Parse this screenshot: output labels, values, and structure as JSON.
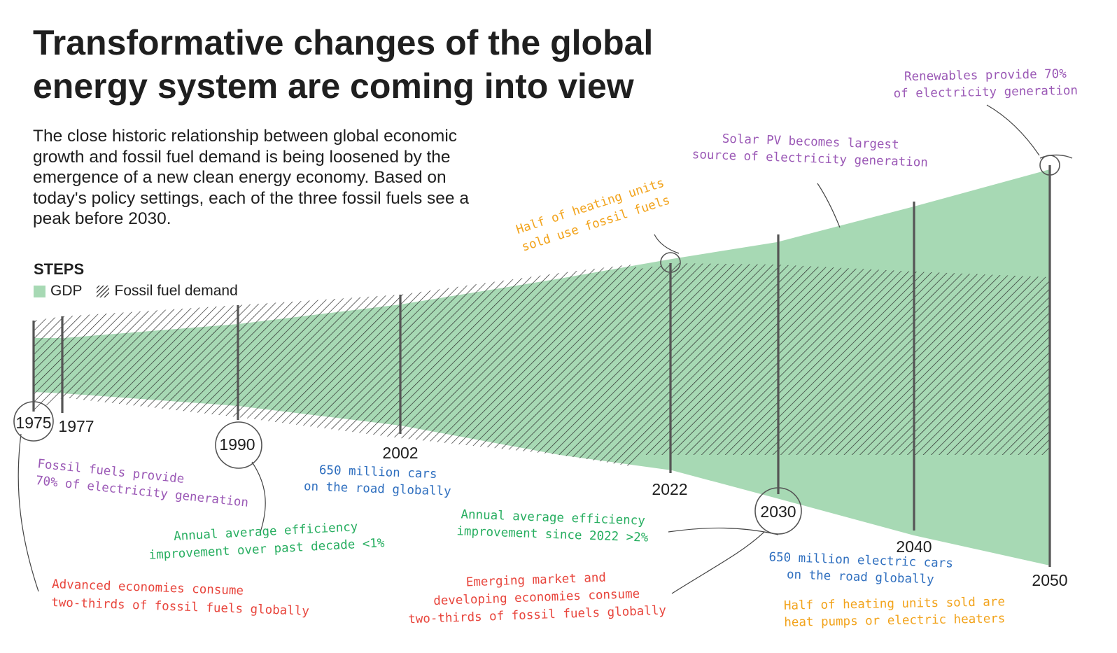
{
  "title": "Transformative changes of the global energy system are coming into view",
  "subtitle": "The close historic relationship between global economic growth and fossil fuel demand is being loosened by the emergence of a new clean energy economy. Based on today's policy settings, each of the three fossil fuels see a peak before 2030.",
  "legend": {
    "title": "STEPS",
    "gdp_label": "GDP",
    "fossil_label": "Fossil fuel demand"
  },
  "colors": {
    "gdp": "#a7d9b4",
    "hatch": "#2b2b2b",
    "purple": "#9b59b6",
    "green": "#27ae60",
    "blue": "#2f6fbf",
    "red": "#e8453c",
    "orange": "#f2a31b"
  },
  "chart_data": {
    "type": "area",
    "title": "Transformative changes of the global energy system are coming into view",
    "scenario": "STEPS",
    "milestone_years": [
      "1975",
      "1977",
      "1990",
      "2002",
      "2022",
      "2030",
      "2040",
      "2050"
    ],
    "series": [
      {
        "name": "GDP",
        "style": "solid green band"
      },
      {
        "name": "Fossil fuel demand",
        "style": "hatched band"
      }
    ],
    "annotations": [
      {
        "id": "fossil_70",
        "year": "1975",
        "color": "purple",
        "lines": [
          "Fossil fuels provide",
          "70% of electricity generation"
        ]
      },
      {
        "id": "advanced_economies",
        "year": "1975",
        "color": "red",
        "lines": [
          "Advanced economies consume",
          "two-thirds of fossil fuels globally"
        ]
      },
      {
        "id": "efficiency_past",
        "year": "1990",
        "color": "green",
        "lines": [
          "Annual average efficiency",
          "improvement over past decade <1%"
        ]
      },
      {
        "id": "cars_650",
        "year": "2002",
        "color": "blue",
        "lines": [
          "650 million cars",
          "on the road globally"
        ]
      },
      {
        "id": "heating_fossil",
        "year": "2022",
        "color": "orange",
        "lines": [
          "Half of heating units",
          "sold use fossil fuels"
        ]
      },
      {
        "id": "efficiency_since",
        "year": "2030",
        "color": "green",
        "lines": [
          "Annual average efficiency",
          "improvement since 2022 >2%"
        ]
      },
      {
        "id": "emerging_markets",
        "year": "2030",
        "color": "red",
        "lines": [
          "Emerging market and",
          "developing economies consume",
          "two-thirds of fossil fuels globally"
        ]
      },
      {
        "id": "solar_pv",
        "year": "2030",
        "color": "purple",
        "lines": [
          "Solar PV becomes largest",
          "source of electricity generation"
        ]
      },
      {
        "id": "ev_650",
        "year": "2030",
        "color": "blue",
        "lines": [
          "650 million electric cars",
          "on the road globally"
        ]
      },
      {
        "id": "renewables_70",
        "year": "2050",
        "color": "purple",
        "lines": [
          "Renewables provide 70%",
          "of electricity generation"
        ]
      },
      {
        "id": "heat_pumps",
        "year": "2050",
        "color": "orange",
        "lines": [
          "Half of heating units sold are",
          "heat pumps or electric heaters"
        ]
      }
    ]
  }
}
